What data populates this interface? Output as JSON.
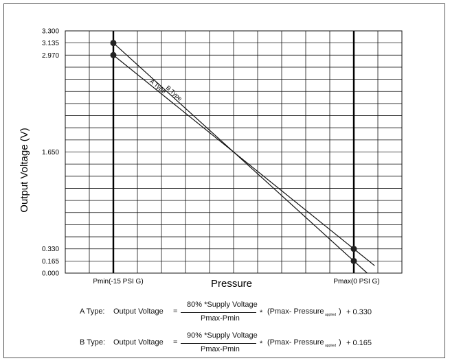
{
  "chart_data": {
    "type": "line",
    "xlabel": "Pressure",
    "ylabel": "Output Voltage (V)",
    "x_tick_labels": [
      "Pmin(-15 PSI G)",
      "Pmax(0 PSI G)"
    ],
    "x_range_psi_g": [
      -15,
      0
    ],
    "y_ticks": [
      "3.300",
      "3.135",
      "2.970",
      "1.650",
      "0.330",
      "0.165",
      "0.000"
    ],
    "y_tick_values": [
      3.3,
      3.135,
      2.97,
      1.65,
      0.33,
      0.165,
      0.0
    ],
    "ylim": [
      0,
      3.3
    ],
    "grid": true,
    "series": [
      {
        "name": "A Type",
        "x": [
          -15,
          0
        ],
        "y": [
          2.97,
          0.33
        ]
      },
      {
        "name": "B Type",
        "x": [
          -15,
          0
        ],
        "y": [
          3.135,
          0.165
        ]
      }
    ]
  },
  "formulas": [
    {
      "type_label": "A Type:",
      "lhs": "Output Voltage",
      "eq": "=",
      "numerator": "80% *Supply Voltage",
      "denominator": "Pmax-Pmin",
      "mult": "*",
      "paren_open": "(Pmax-  Pressure",
      "subscript": "applied",
      "paren_close": ")",
      "tail": "+ 0.330"
    },
    {
      "type_label": "B Type:",
      "lhs": "Output Voltage",
      "eq": "=",
      "numerator": "90% *Supply Voltage",
      "denominator": "Pmax-Pmin",
      "mult": "*",
      "paren_open": "(Pmax-  Pressure",
      "subscript": "applied",
      "paren_close": ")",
      "tail": "+ 0.165"
    }
  ]
}
